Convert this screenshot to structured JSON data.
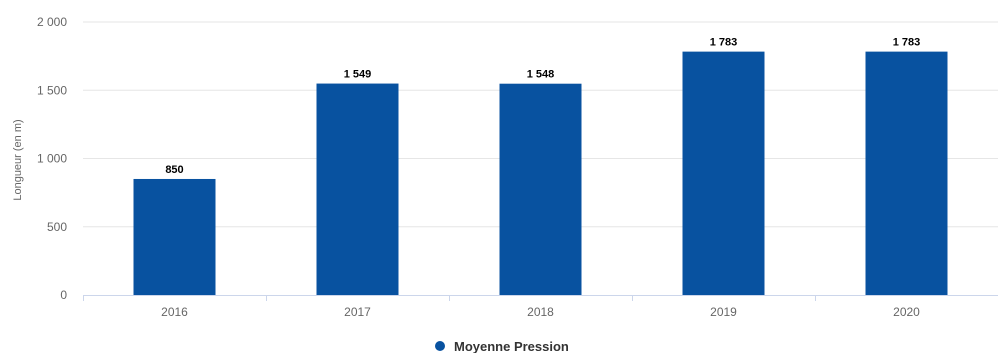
{
  "chart_data": {
    "type": "bar",
    "title": "",
    "xlabel": "",
    "ylabel": "Longueur (en m)",
    "categories": [
      "2016",
      "2017",
      "2018",
      "2019",
      "2020"
    ],
    "series": [
      {
        "name": "Moyenne Pression",
        "values": [
          850,
          1549,
          1548,
          1783,
          1783
        ],
        "value_labels": [
          "850",
          "1 549",
          "1 548",
          "1 783",
          "1 783"
        ],
        "color": "#0852a0"
      }
    ],
    "ylim": [
      0,
      2000
    ],
    "yticks": [
      0,
      500,
      1000,
      1500,
      2000
    ],
    "ytick_labels": [
      "0",
      "500",
      "1 000",
      "1 500",
      "2 000"
    ],
    "grid": true,
    "legend": "bottom-center"
  }
}
